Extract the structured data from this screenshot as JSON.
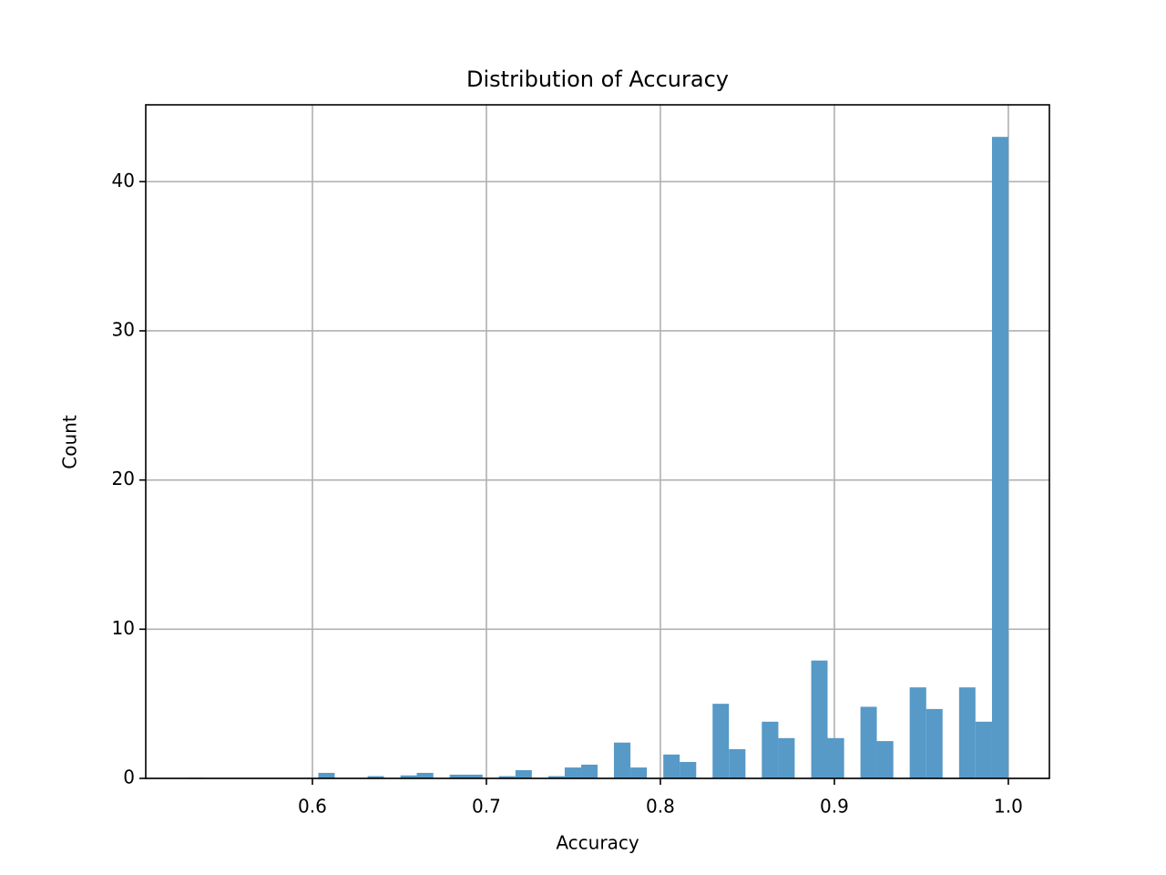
{
  "chart_data": {
    "type": "histogram",
    "title": "Distribution of Accuracy",
    "xlabel": "Accuracy",
    "ylabel": "Count",
    "bins": [
      0.5278,
      0.5372,
      0.5467,
      0.5561,
      0.5656,
      0.575,
      0.5845,
      0.5939,
      0.6034,
      0.6128,
      0.6222,
      0.6317,
      0.6411,
      0.6506,
      0.66,
      0.6695,
      0.6789,
      0.6883,
      0.6978,
      0.7072,
      0.7167,
      0.7261,
      0.7356,
      0.745,
      0.7545,
      0.7639,
      0.7733,
      0.7828,
      0.7922,
      0.8017,
      0.8111,
      0.8206,
      0.83,
      0.8394,
      0.8489,
      0.8583,
      0.8678,
      0.8772,
      0.8867,
      0.8961,
      0.9056,
      0.915,
      0.9244,
      0.9339,
      0.9433,
      0.9528,
      0.9622,
      0.9717,
      0.9811,
      0.9906,
      1.0
    ],
    "values": [
      0.05,
      0,
      0,
      0,
      0,
      0,
      0,
      0,
      0.37,
      0,
      0,
      0.15,
      0,
      0.2,
      0.37,
      0,
      0.25,
      0.25,
      0,
      0.15,
      0.55,
      0,
      0.15,
      0.73,
      0.92,
      0,
      2.4,
      0.73,
      0,
      1.6,
      1.1,
      0,
      5.0,
      1.96,
      0,
      3.8,
      2.7,
      0,
      7.9,
      2.7,
      0,
      4.8,
      2.5,
      0,
      6.1,
      4.65,
      0,
      6.1,
      3.8,
      43
    ],
    "color": "#5799c7",
    "xlim": [
      0.5042,
      1.0236
    ],
    "ylim": [
      0,
      45.15
    ],
    "xticks": [
      0.6,
      0.7,
      0.8,
      0.9,
      {
        "value": 1,
        "label": "1.0"
      }
    ],
    "yticks": [
      0,
      10,
      20,
      30,
      40
    ],
    "grid": true
  }
}
